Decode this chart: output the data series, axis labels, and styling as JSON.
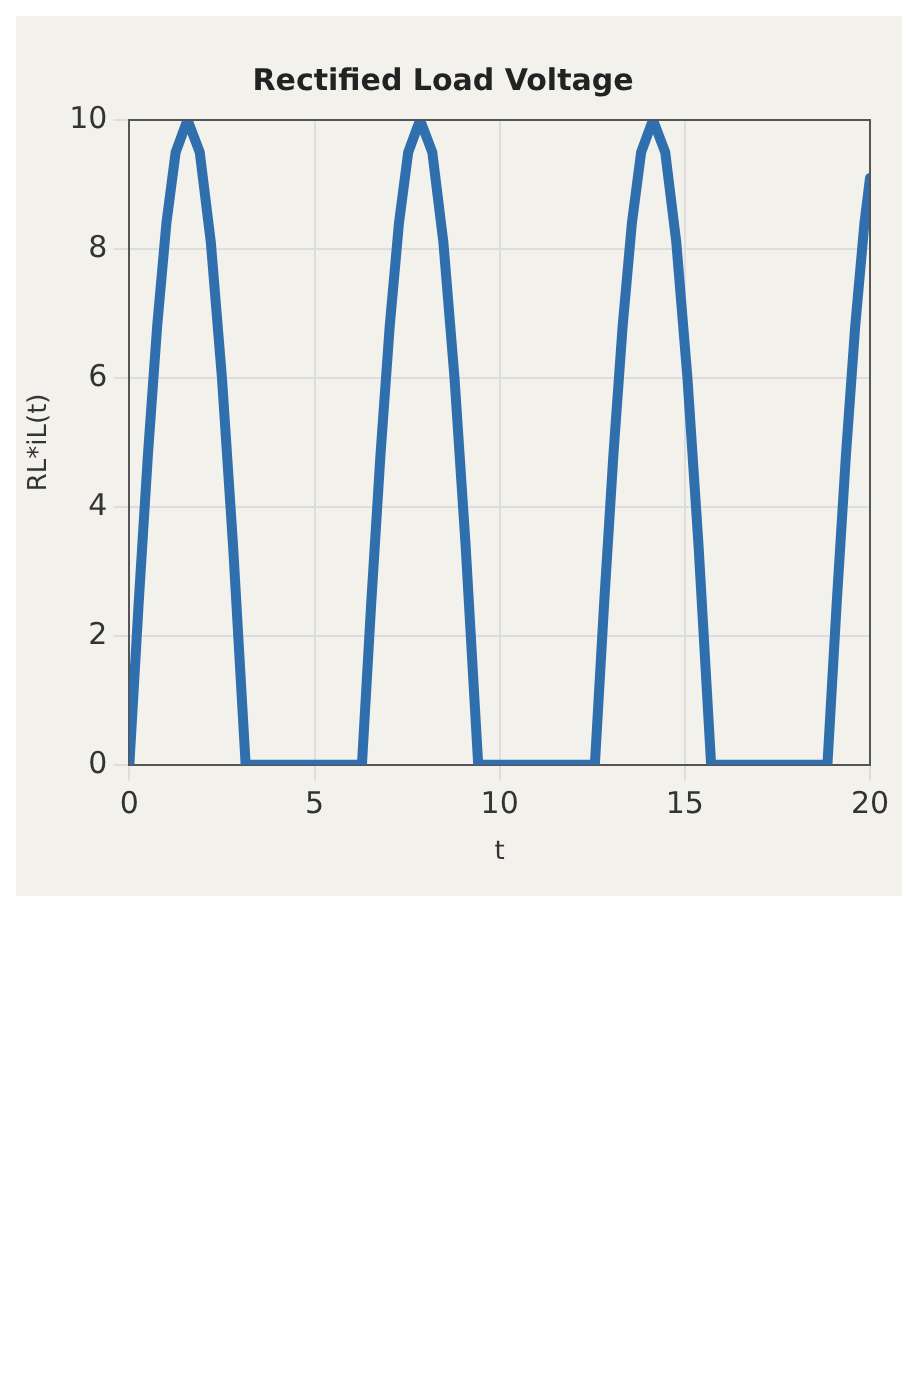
{
  "chart_data": {
    "type": "line",
    "title": "Rectified Load Voltage",
    "xlabel": "t",
    "ylabel": "RL*iL(t)",
    "xlim": [
      0,
      20
    ],
    "ylim": [
      0,
      10
    ],
    "xticks": [
      0,
      5,
      10,
      15,
      20
    ],
    "yticks": [
      0,
      2,
      4,
      6,
      8,
      10
    ],
    "grid": true,
    "legend": false,
    "marker": "none",
    "line_style": "solid",
    "series": [
      {
        "color": "#2f6fad",
        "x": [
          0,
          0.25,
          0.5,
          0.75,
          1,
          1.25,
          1.57,
          1.9,
          2.2,
          2.5,
          2.8,
          3.14,
          6.28,
          6.53,
          6.78,
          7.03,
          7.28,
          7.53,
          7.85,
          8.18,
          8.48,
          8.78,
          9.08,
          9.42,
          12.57,
          12.82,
          13.07,
          13.32,
          13.57,
          13.82,
          14.14,
          14.47,
          14.77,
          15.07,
          15.37,
          15.71,
          18.85,
          19.1,
          19.35,
          19.6,
          19.85,
          20
        ],
        "values": [
          0,
          2.5,
          4.8,
          6.8,
          8.4,
          9.5,
          10,
          9.5,
          8.1,
          6,
          3.4,
          0,
          0,
          2.5,
          4.8,
          6.8,
          8.4,
          9.5,
          10,
          9.5,
          8.1,
          6,
          3.4,
          0,
          0,
          2.5,
          4.8,
          6.8,
          8.4,
          9.5,
          10,
          9.5,
          8.1,
          6,
          3.4,
          0,
          0,
          2.5,
          4.8,
          6.8,
          8.4,
          9.1
        ]
      }
    ]
  }
}
